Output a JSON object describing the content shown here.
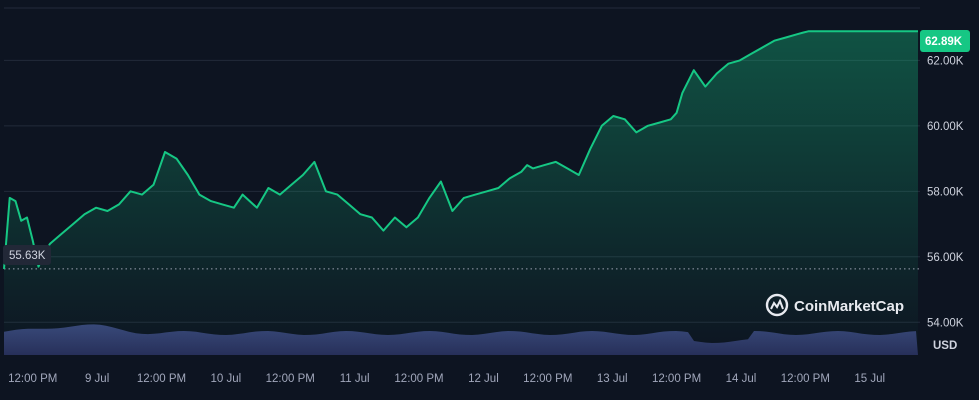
{
  "chart_data": {
    "type": "line",
    "y_unit": "USD",
    "y_ticks": [
      "62.00K",
      "60.00K",
      "58.00K",
      "56.00K",
      "54.00K"
    ],
    "y_tick_values": [
      62000,
      60000,
      58000,
      56000,
      54000
    ],
    "x_ticks": [
      "12:00 PM",
      "9 Jul",
      "12:00 PM",
      "10 Jul",
      "12:00 PM",
      "11 Jul",
      "12:00 PM",
      "12 Jul",
      "12:00 PM",
      "13 Jul",
      "12:00 PM",
      "14 Jul",
      "12:00 PM",
      "15 Jul"
    ],
    "ylim": [
      53000,
      63600
    ],
    "grid": true,
    "current_price_label": "62.89K",
    "current_price": 62890,
    "open_price_label": "55.63K",
    "open_price": 55630,
    "x_hours": [
      0,
      1,
      2,
      3,
      4,
      5,
      6,
      7,
      8,
      10,
      12,
      14,
      16,
      18,
      20,
      22,
      24,
      26,
      28,
      30,
      32,
      34,
      36,
      38,
      40,
      41.5,
      44,
      46,
      48,
      50,
      52,
      54,
      56,
      58,
      60,
      62,
      64,
      66,
      67,
      68,
      70,
      72,
      74,
      76,
      78,
      80,
      82,
      84,
      86,
      88,
      90,
      91,
      92,
      94,
      96,
      98,
      100,
      102,
      104,
      106,
      108,
      110,
      112,
      114,
      116,
      117,
      118,
      120,
      122,
      124,
      126,
      128,
      130,
      132,
      134,
      136,
      138,
      139,
      140,
      142,
      143,
      144,
      146,
      148,
      150,
      152,
      153,
      154,
      155,
      156,
      157,
      158,
      159
    ],
    "price": [
      55630,
      57800,
      57700,
      57100,
      57200,
      56500,
      55700,
      56100,
      56400,
      56700,
      57000,
      57300,
      57500,
      57400,
      57600,
      58000,
      57900,
      58200,
      59200,
      59000,
      58500,
      57900,
      57700,
      57600,
      57500,
      57900,
      57500,
      58100,
      57900,
      58200,
      58500,
      58900,
      58000,
      57900,
      57600,
      57300,
      57200,
      56800,
      57000,
      57200,
      56900,
      57200,
      57800,
      58300,
      57400,
      57800,
      57900,
      58000,
      58100,
      58400,
      58600,
      58800,
      58700,
      58800,
      58900,
      58700,
      58500,
      59300,
      60000,
      60300,
      60200,
      59800,
      60000,
      60100,
      60200,
      60400,
      61000,
      61700,
      61200,
      61600,
      61900,
      62000,
      62200,
      62400,
      62600,
      62700,
      62800,
      62850,
      62890,
      62890,
      62890,
      62890,
      62890,
      62890,
      62890,
      62890,
      62890,
      62890,
      62890,
      62890,
      62890,
      62890,
      62890
    ],
    "volume_note": "",
    "watermark": "CoinMarketCap"
  }
}
